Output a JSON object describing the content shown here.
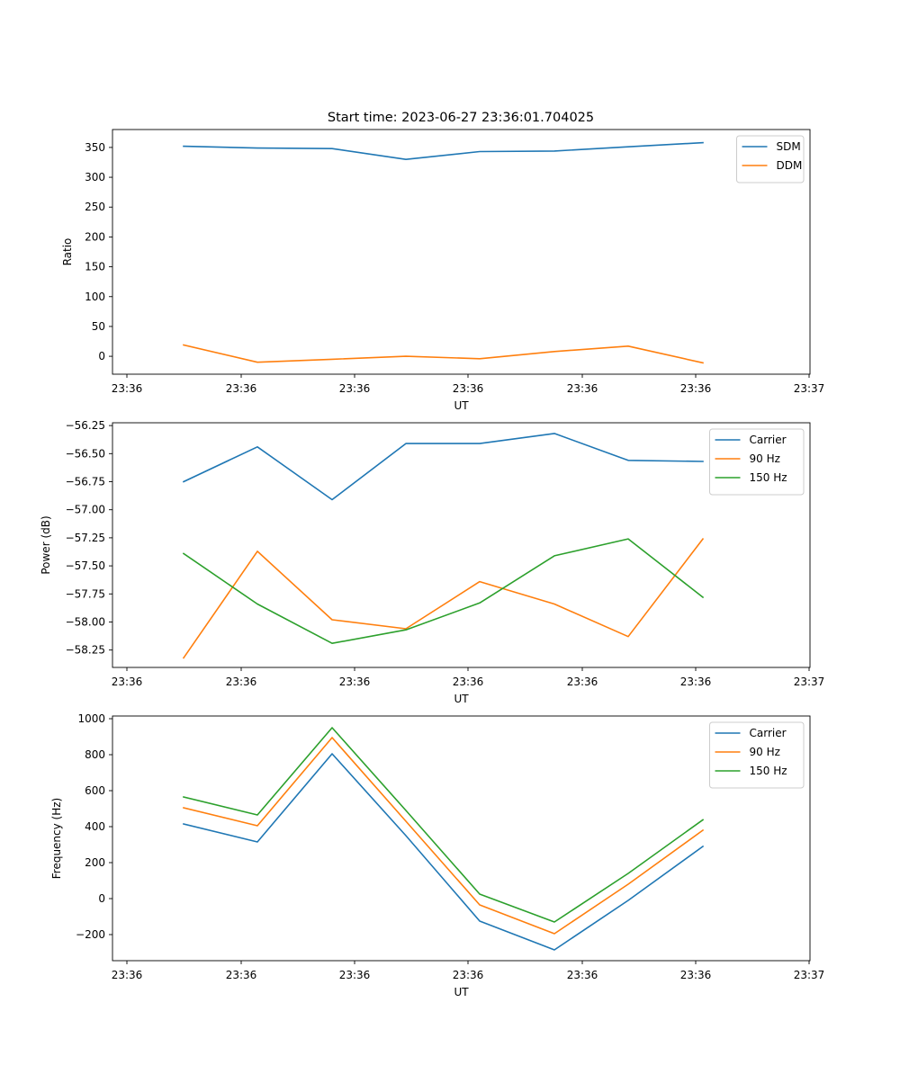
{
  "figure": {
    "title": "Start time: 2023-06-27 23:36:01.704025"
  },
  "chart_data": [
    {
      "type": "line",
      "title": "Start time: 2023-06-27 23:36:01.704025",
      "xlabel": "UT",
      "ylabel": "Ratio",
      "x_tick_labels": [
        "23:36",
        "23:36",
        "23:36",
        "23:36",
        "23:36",
        "23:36",
        "23:37"
      ],
      "y_ticks": [
        0,
        50,
        100,
        150,
        200,
        250,
        300,
        350
      ],
      "ylim": [
        -30,
        380
      ],
      "legend": "top-right",
      "grid": false,
      "series": [
        {
          "name": "SDM",
          "color": "#1f77b4",
          "values": [
            352,
            349,
            348,
            330,
            343,
            344,
            351,
            358
          ]
        },
        {
          "name": "DDM",
          "color": "#ff7f0e",
          "values": [
            19,
            -10,
            -5,
            0,
            -4,
            8,
            17,
            -11
          ]
        }
      ]
    },
    {
      "type": "line",
      "title": "",
      "xlabel": "UT",
      "ylabel": "Power (dB)",
      "x_tick_labels": [
        "23:36",
        "23:36",
        "23:36",
        "23:36",
        "23:36",
        "23:36",
        "23:37"
      ],
      "y_ticks": [
        -58.25,
        -58.0,
        -57.75,
        -57.5,
        -57.25,
        -57.0,
        -56.75,
        -56.5,
        -56.25
      ],
      "y_tick_labels": [
        "−58.25",
        "−58.00",
        "−57.75",
        "−57.50",
        "−57.25",
        "−57.00",
        "−56.75",
        "−56.50",
        "−56.25"
      ],
      "ylim": [
        -58.405,
        -56.225
      ],
      "legend": "top-right",
      "grid": false,
      "series": [
        {
          "name": "Carrier",
          "color": "#1f77b4",
          "values": [
            -56.75,
            -56.44,
            -56.91,
            -56.41,
            -56.41,
            -56.32,
            -56.56,
            -56.57
          ]
        },
        {
          "name": "90 Hz",
          "color": "#ff7f0e",
          "values": [
            -58.32,
            -57.37,
            -57.98,
            -58.06,
            -57.64,
            -57.84,
            -58.13,
            -57.26
          ]
        },
        {
          "name": "150 Hz",
          "color": "#2ca02c",
          "values": [
            -57.39,
            -57.84,
            -58.19,
            -58.07,
            -57.83,
            -57.41,
            -57.26,
            -57.78
          ]
        }
      ]
    },
    {
      "type": "line",
      "title": "",
      "xlabel": "UT",
      "ylabel": "Frequency (Hz)",
      "x_tick_labels": [
        "23:36",
        "23:36",
        "23:36",
        "23:36",
        "23:36",
        "23:36",
        "23:37"
      ],
      "y_ticks": [
        -200,
        0,
        200,
        400,
        600,
        800,
        1000
      ],
      "y_tick_labels": [
        "−200",
        "0",
        "200",
        "400",
        "600",
        "800",
        "1000"
      ],
      "ylim": [
        -345,
        1015
      ],
      "legend": "top-right",
      "grid": false,
      "series": [
        {
          "name": "Carrier",
          "color": "#1f77b4",
          "values": [
            415,
            315,
            805,
            350,
            -125,
            -285,
            -10,
            290
          ]
        },
        {
          "name": "90 Hz",
          "color": "#ff7f0e",
          "values": [
            505,
            405,
            895,
            430,
            -35,
            -195,
            80,
            380
          ]
        },
        {
          "name": "150 Hz",
          "color": "#2ca02c",
          "values": [
            565,
            465,
            950,
            490,
            25,
            -130,
            140,
            438
          ]
        }
      ]
    }
  ]
}
